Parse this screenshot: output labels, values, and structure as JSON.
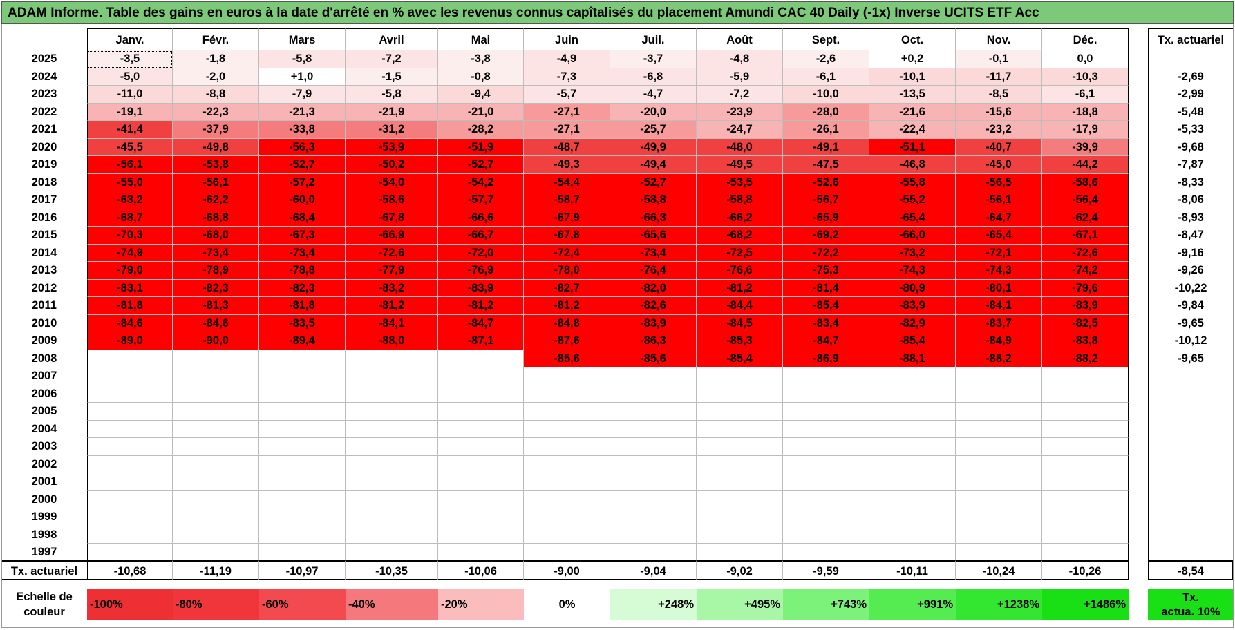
{
  "title": "ADAM Informe. Table des gains en euros à la date d'arrêté en % avec les revenus connus capîtalisés du placement Amundi CAC 40 Daily (-1x) Inverse UCITS ETF Acc",
  "months": [
    "Janv.",
    "Févr.",
    "Mars",
    "Avril",
    "Mai",
    "Juin",
    "Juil.",
    "Août",
    "Sept.",
    "Oct.",
    "Nov.",
    "Déc."
  ],
  "actuarial_header": "Tx. actuariel",
  "rows": [
    {
      "year": "2025",
      "values": [
        "-3,5",
        "-1,8",
        "-5,8",
        "-7,2",
        "-3,8",
        "-4,9",
        "-3,7",
        "-4,8",
        "-2,6",
        "+0,2",
        "-0,1",
        "0,0"
      ],
      "act": ""
    },
    {
      "year": "2024",
      "values": [
        "-5,0",
        "-2,0",
        "+1,0",
        "-1,5",
        "-0,8",
        "-7,3",
        "-6,8",
        "-5,9",
        "-6,1",
        "-10,1",
        "-11,7",
        "-10,3"
      ],
      "act": "-2,69"
    },
    {
      "year": "2023",
      "values": [
        "-11,0",
        "-8,8",
        "-7,9",
        "-5,8",
        "-9,4",
        "-5,7",
        "-4,7",
        "-7,2",
        "-10,0",
        "-13,5",
        "-8,5",
        "-6,1"
      ],
      "act": "-2,99"
    },
    {
      "year": "2022",
      "values": [
        "-19,1",
        "-22,3",
        "-21,3",
        "-21,9",
        "-21,0",
        "-27,1",
        "-20,0",
        "-23,9",
        "-28,0",
        "-21,6",
        "-15,6",
        "-18,8"
      ],
      "act": "-5,48"
    },
    {
      "year": "2021",
      "values": [
        "-41,4",
        "-37,9",
        "-33,8",
        "-31,2",
        "-28,2",
        "-27,1",
        "-25,7",
        "-24,7",
        "-26,1",
        "-22,4",
        "-23,2",
        "-17,9"
      ],
      "act": "-5,33"
    },
    {
      "year": "2020",
      "values": [
        "-45,5",
        "-49,8",
        "-56,3",
        "-53,9",
        "-51,9",
        "-48,7",
        "-49,9",
        "-48,0",
        "-49,1",
        "-51,1",
        "-40,7",
        "-39,9"
      ],
      "act": "-9,68"
    },
    {
      "year": "2019",
      "values": [
        "-56,1",
        "-53,8",
        "-52,7",
        "-50,2",
        "-52,7",
        "-49,3",
        "-49,4",
        "-49,5",
        "-47,5",
        "-46,8",
        "-45,0",
        "-44,2"
      ],
      "act": "-7,87"
    },
    {
      "year": "2018",
      "values": [
        "-55,0",
        "-56,1",
        "-57,2",
        "-54,0",
        "-54,2",
        "-54,4",
        "-52,7",
        "-53,5",
        "-52,6",
        "-55,8",
        "-56,5",
        "-58,6"
      ],
      "act": "-8,33"
    },
    {
      "year": "2017",
      "values": [
        "-63,2",
        "-62,2",
        "-60,0",
        "-58,6",
        "-57,7",
        "-58,7",
        "-58,8",
        "-58,8",
        "-56,7",
        "-55,2",
        "-56,1",
        "-56,4"
      ],
      "act": "-8,06"
    },
    {
      "year": "2016",
      "values": [
        "-68,7",
        "-68,8",
        "-68,4",
        "-67,8",
        "-66,6",
        "-67,9",
        "-66,3",
        "-66,2",
        "-65,9",
        "-65,4",
        "-64,7",
        "-62,4"
      ],
      "act": "-8,93"
    },
    {
      "year": "2015",
      "values": [
        "-70,3",
        "-68,0",
        "-67,3",
        "-66,9",
        "-66,7",
        "-67,8",
        "-65,6",
        "-68,2",
        "-69,2",
        "-66,0",
        "-65,4",
        "-67,1"
      ],
      "act": "-8,47"
    },
    {
      "year": "2014",
      "values": [
        "-74,9",
        "-73,4",
        "-73,4",
        "-72,6",
        "-72,0",
        "-72,4",
        "-73,4",
        "-72,5",
        "-72,2",
        "-73,2",
        "-72,1",
        "-72,6"
      ],
      "act": "-9,16"
    },
    {
      "year": "2013",
      "values": [
        "-79,0",
        "-78,9",
        "-78,8",
        "-77,9",
        "-76,9",
        "-78,0",
        "-76,4",
        "-76,6",
        "-75,3",
        "-74,3",
        "-74,3",
        "-74,2"
      ],
      "act": "-9,26"
    },
    {
      "year": "2012",
      "values": [
        "-83,1",
        "-82,3",
        "-82,3",
        "-83,2",
        "-83,9",
        "-82,7",
        "-82,0",
        "-81,2",
        "-81,4",
        "-80,9",
        "-80,1",
        "-79,6"
      ],
      "act": "-10,22"
    },
    {
      "year": "2011",
      "values": [
        "-81,8",
        "-81,3",
        "-81,8",
        "-81,2",
        "-81,2",
        "-81,2",
        "-82,6",
        "-84,4",
        "-85,4",
        "-83,9",
        "-84,1",
        "-83,9"
      ],
      "act": "-9,84"
    },
    {
      "year": "2010",
      "values": [
        "-84,6",
        "-84,6",
        "-83,5",
        "-84,1",
        "-84,7",
        "-84,8",
        "-83,9",
        "-84,5",
        "-83,4",
        "-82,9",
        "-83,7",
        "-82,5"
      ],
      "act": "-9,65"
    },
    {
      "year": "2009",
      "values": [
        "-89,0",
        "-90,0",
        "-89,4",
        "-88,0",
        "-87,1",
        "-87,6",
        "-86,3",
        "-85,3",
        "-84,7",
        "-85,4",
        "-84,9",
        "-83,8"
      ],
      "act": "-10,12"
    },
    {
      "year": "2008",
      "values": [
        "",
        "",
        "",
        "",
        "",
        "-85,6",
        "-85,6",
        "-85,4",
        "-86,9",
        "-88,1",
        "-88,2",
        "-88,2"
      ],
      "act": "-9,65"
    },
    {
      "year": "2007",
      "values": [
        "",
        "",
        "",
        "",
        "",
        "",
        "",
        "",
        "",
        "",
        "",
        ""
      ],
      "act": ""
    },
    {
      "year": "2006",
      "values": [
        "",
        "",
        "",
        "",
        "",
        "",
        "",
        "",
        "",
        "",
        "",
        ""
      ],
      "act": ""
    },
    {
      "year": "2005",
      "values": [
        "",
        "",
        "",
        "",
        "",
        "",
        "",
        "",
        "",
        "",
        "",
        ""
      ],
      "act": ""
    },
    {
      "year": "2004",
      "values": [
        "",
        "",
        "",
        "",
        "",
        "",
        "",
        "",
        "",
        "",
        "",
        ""
      ],
      "act": ""
    },
    {
      "year": "2003",
      "values": [
        "",
        "",
        "",
        "",
        "",
        "",
        "",
        "",
        "",
        "",
        "",
        ""
      ],
      "act": ""
    },
    {
      "year": "2002",
      "values": [
        "",
        "",
        "",
        "",
        "",
        "",
        "",
        "",
        "",
        "",
        "",
        ""
      ],
      "act": ""
    },
    {
      "year": "2001",
      "values": [
        "",
        "",
        "",
        "",
        "",
        "",
        "",
        "",
        "",
        "",
        "",
        ""
      ],
      "act": ""
    },
    {
      "year": "2000",
      "values": [
        "",
        "",
        "",
        "",
        "",
        "",
        "",
        "",
        "",
        "",
        "",
        ""
      ],
      "act": ""
    },
    {
      "year": "1999",
      "values": [
        "",
        "",
        "",
        "",
        "",
        "",
        "",
        "",
        "",
        "",
        "",
        ""
      ],
      "act": ""
    },
    {
      "year": "1998",
      "values": [
        "",
        "",
        "",
        "",
        "",
        "",
        "",
        "",
        "",
        "",
        "",
        ""
      ],
      "act": ""
    },
    {
      "year": "1997",
      "values": [
        "",
        "",
        "",
        "",
        "",
        "",
        "",
        "",
        "",
        "",
        "",
        ""
      ],
      "act": ""
    }
  ],
  "total_row": {
    "label": "Tx. actuariel",
    "values": [
      "-10,68",
      "-11,19",
      "-10,97",
      "-10,35",
      "-10,06",
      "-9,00",
      "-9,04",
      "-9,02",
      "-9,59",
      "-10,11",
      "-10,24",
      "-10,26"
    ],
    "act": "-8,54"
  },
  "color_scale": {
    "label_line1": "Echelle de",
    "label_line2": "couleur",
    "items": [
      {
        "text": "-100%",
        "color": "#ee3034",
        "align": "left"
      },
      {
        "text": "-80%",
        "color": "#f0363b",
        "align": "left"
      },
      {
        "text": "-60%",
        "color": "#f24a4e",
        "align": "left"
      },
      {
        "text": "-40%",
        "color": "#f5797c",
        "align": "left"
      },
      {
        "text": "-20%",
        "color": "#fabcbd",
        "align": "left"
      },
      {
        "text": "0%",
        "color": "#ffffff",
        "align": "center"
      },
      {
        "text": "+248%",
        "color": "#d6fcd6",
        "align": "right"
      },
      {
        "text": "+495%",
        "color": "#a8f7a6",
        "align": "right"
      },
      {
        "text": "+743%",
        "color": "#7df27a",
        "align": "right"
      },
      {
        "text": "+991%",
        "color": "#55ec52",
        "align": "right"
      },
      {
        "text": "+1238%",
        "color": "#33e630",
        "align": "right"
      },
      {
        "text": "+1486%",
        "color": "#18e015",
        "align": "right"
      }
    ],
    "act_legend_line1": "Tx.",
    "act_legend_line2": "actua. 10%",
    "act_legend_color": "#18e015"
  },
  "colors": {
    "title_bg": "#7dc97a",
    "negative_strong": "#ff0000",
    "negative_light": "#ffe6e6"
  }
}
